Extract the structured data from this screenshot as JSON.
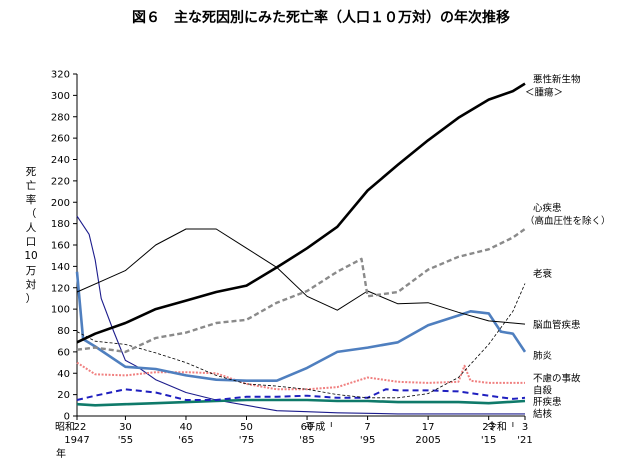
{
  "chart_data": {
    "type": "line",
    "title": "図６　主な死因別にみた死亡率（人口１０万対）の年次推移",
    "ylabel": [
      "死",
      "亡",
      "率",
      "（",
      "人",
      "口",
      "10",
      "万",
      "対",
      "）"
    ],
    "xlabel": "年",
    "ylim": [
      0,
      320
    ],
    "yticks": [
      0,
      20,
      40,
      60,
      80,
      100,
      120,
      140,
      160,
      180,
      200,
      220,
      240,
      260,
      280,
      300,
      320
    ],
    "xlim": [
      1947,
      2021
    ],
    "xticks_era": [
      {
        "x": 1947,
        "label": "22"
      },
      {
        "x": 1955,
        "label": "30"
      },
      {
        "x": 1965,
        "label": "40"
      },
      {
        "x": 1975,
        "label": "50"
      },
      {
        "x": 1985,
        "label": "60"
      },
      {
        "x": 1995,
        "label": "7"
      },
      {
        "x": 2005,
        "label": "17"
      },
      {
        "x": 2015,
        "label": "27"
      },
      {
        "x": 2021,
        "label": "3"
      }
    ],
    "era_names": [
      {
        "x": 1947,
        "label": "昭和"
      },
      {
        "x": 1989,
        "label": "平成"
      },
      {
        "x": 2019,
        "label": "令和"
      }
    ],
    "xticks_western": [
      {
        "x": 1947,
        "label": "1947"
      },
      {
        "x": 1955,
        "label": "'55"
      },
      {
        "x": 1965,
        "label": "'65"
      },
      {
        "x": 1975,
        "label": "'75"
      },
      {
        "x": 1985,
        "label": "'85"
      },
      {
        "x": 1995,
        "label": "'95"
      },
      {
        "x": 2005,
        "label": "2005"
      },
      {
        "x": 2015,
        "label": "'15"
      },
      {
        "x": 2021,
        "label": "'21"
      }
    ],
    "series": [
      {
        "name": "悪性新生物",
        "name2": "＜腫瘍＞",
        "label_y": 310,
        "color": "#000000",
        "width": 2.6,
        "dash": "",
        "points": [
          [
            1947,
            69
          ],
          [
            1950,
            77
          ],
          [
            1955,
            87
          ],
          [
            1960,
            100
          ],
          [
            1965,
            108
          ],
          [
            1970,
            116
          ],
          [
            1975,
            122
          ],
          [
            1980,
            139
          ],
          [
            1985,
            157
          ],
          [
            1990,
            177
          ],
          [
            1995,
            211
          ],
          [
            2000,
            235
          ],
          [
            2005,
            258
          ],
          [
            2010,
            279
          ],
          [
            2015,
            296
          ],
          [
            2019,
            304
          ],
          [
            2021,
            311
          ]
        ]
      },
      {
        "name": "心疾患",
        "name2": "（高血圧性を除く）",
        "label_y": 190,
        "color": "#8a8a8a",
        "width": 2.4,
        "dash": "5,3",
        "points": [
          [
            1947,
            62
          ],
          [
            1950,
            64
          ],
          [
            1955,
            60
          ],
          [
            1960,
            73
          ],
          [
            1965,
            78
          ],
          [
            1970,
            87
          ],
          [
            1975,
            90
          ],
          [
            1980,
            106
          ],
          [
            1985,
            117
          ],
          [
            1990,
            135
          ],
          [
            1994,
            147
          ],
          [
            1995,
            112
          ],
          [
            2000,
            116
          ],
          [
            2005,
            137
          ],
          [
            2010,
            149
          ],
          [
            2015,
            156
          ],
          [
            2019,
            167
          ],
          [
            2021,
            175
          ]
        ]
      },
      {
        "name": "老衰",
        "label_y": 133,
        "color": "#000000",
        "width": 0.8,
        "dash": "3,2",
        "points": [
          [
            1947,
            79
          ],
          [
            1950,
            70
          ],
          [
            1955,
            67
          ],
          [
            1960,
            59
          ],
          [
            1965,
            50
          ],
          [
            1970,
            38
          ],
          [
            1975,
            30
          ],
          [
            1980,
            28
          ],
          [
            1985,
            25
          ],
          [
            1990,
            20
          ],
          [
            1995,
            17
          ],
          [
            2000,
            17
          ],
          [
            2005,
            21
          ],
          [
            2010,
            36
          ],
          [
            2015,
            67
          ],
          [
            2019,
            98
          ],
          [
            2021,
            124
          ]
        ]
      },
      {
        "name": "脳血管疾患",
        "label_y": 85,
        "color": "#000000",
        "width": 1.0,
        "dash": "",
        "points": [
          [
            1947,
            116
          ],
          [
            1951,
            126
          ],
          [
            1955,
            136
          ],
          [
            1960,
            160
          ],
          [
            1965,
            175
          ],
          [
            1970,
            175
          ],
          [
            1975,
            157
          ],
          [
            1980,
            139
          ],
          [
            1985,
            112
          ],
          [
            1990,
            99
          ],
          [
            1995,
            117
          ],
          [
            2000,
            105
          ],
          [
            2005,
            106
          ],
          [
            2010,
            97
          ],
          [
            2015,
            89
          ],
          [
            2019,
            87
          ],
          [
            2021,
            86
          ]
        ]
      },
      {
        "name": "肺炎",
        "label_y": 56,
        "color": "#4f7fbf",
        "width": 2.6,
        "dash": "",
        "points": [
          [
            1947,
            135
          ],
          [
            1948,
            72
          ],
          [
            1950,
            65
          ],
          [
            1955,
            46
          ],
          [
            1960,
            44
          ],
          [
            1965,
            38
          ],
          [
            1970,
            34
          ],
          [
            1975,
            33
          ],
          [
            1980,
            33
          ],
          [
            1985,
            45
          ],
          [
            1990,
            60
          ],
          [
            1995,
            64
          ],
          [
            2000,
            69
          ],
          [
            2005,
            85
          ],
          [
            2010,
            94
          ],
          [
            2012,
            98
          ],
          [
            2015,
            96
          ],
          [
            2017,
            79
          ],
          [
            2019,
            77
          ],
          [
            2021,
            60
          ]
        ]
      },
      {
        "name": "不慮の事故",
        "label_y": 35,
        "color": "#f08080",
        "width": 2.0,
        "dash": "2,1.5",
        "points": [
          [
            1947,
            50
          ],
          [
            1950,
            39
          ],
          [
            1955,
            38
          ],
          [
            1960,
            41
          ],
          [
            1965,
            41
          ],
          [
            1970,
            40
          ],
          [
            1975,
            30
          ],
          [
            1980,
            25
          ],
          [
            1985,
            25
          ],
          [
            1990,
            27
          ],
          [
            1995,
            36
          ],
          [
            2000,
            32
          ],
          [
            2005,
            31
          ],
          [
            2010,
            32
          ],
          [
            2011,
            47
          ],
          [
            2012,
            33
          ],
          [
            2015,
            31
          ],
          [
            2021,
            31
          ]
        ]
      },
      {
        "name": "自殺",
        "label_y": 24,
        "color": "#1f1fbf",
        "width": 2.0,
        "dash": "6,4",
        "points": [
          [
            1947,
            15
          ],
          [
            1950,
            19
          ],
          [
            1955,
            25
          ],
          [
            1960,
            22
          ],
          [
            1965,
            15
          ],
          [
            1970,
            15
          ],
          [
            1975,
            18
          ],
          [
            1980,
            18
          ],
          [
            1985,
            19
          ],
          [
            1990,
            17
          ],
          [
            1995,
            17
          ],
          [
            1998,
            25
          ],
          [
            2000,
            24
          ],
          [
            2005,
            24
          ],
          [
            2010,
            23
          ],
          [
            2015,
            19
          ],
          [
            2019,
            16
          ],
          [
            2021,
            17
          ]
        ]
      },
      {
        "name": "肝疾患",
        "label_y": 13,
        "color": "#0f7a6a",
        "width": 2.6,
        "dash": "",
        "points": [
          [
            1947,
            11
          ],
          [
            1950,
            10
          ],
          [
            1955,
            11
          ],
          [
            1960,
            12
          ],
          [
            1965,
            13
          ],
          [
            1970,
            14
          ],
          [
            1975,
            15
          ],
          [
            1980,
            15
          ],
          [
            1985,
            15
          ],
          [
            1990,
            14
          ],
          [
            1995,
            14
          ],
          [
            2000,
            13
          ],
          [
            2005,
            13
          ],
          [
            2010,
            13
          ],
          [
            2015,
            12
          ],
          [
            2021,
            14
          ]
        ]
      },
      {
        "name": "結核",
        "label_y": 2,
        "color": "#1c1c8c",
        "width": 1.1,
        "dash": "",
        "points": [
          [
            1947,
            187
          ],
          [
            1949,
            170
          ],
          [
            1950,
            146
          ],
          [
            1951,
            110
          ],
          [
            1953,
            80
          ],
          [
            1955,
            52
          ],
          [
            1957,
            46
          ],
          [
            1960,
            34
          ],
          [
            1965,
            22
          ],
          [
            1970,
            15
          ],
          [
            1975,
            10
          ],
          [
            1980,
            5
          ],
          [
            1985,
            4
          ],
          [
            1990,
            3
          ],
          [
            2000,
            2
          ],
          [
            2010,
            2
          ],
          [
            2021,
            2
          ]
        ]
      }
    ]
  }
}
